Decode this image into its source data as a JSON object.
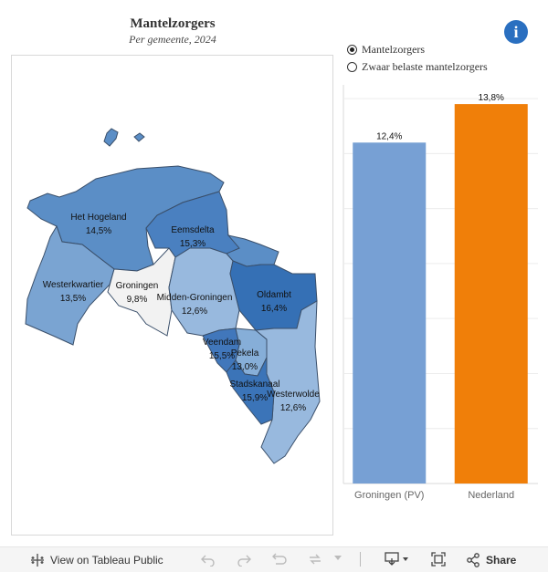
{
  "header": {
    "title": "Mantelzorgers",
    "subtitle": "Per  gemeente,  2024",
    "info_glyph": "i"
  },
  "radio": {
    "options": [
      {
        "label": "Mantelzorgers",
        "selected": true
      },
      {
        "label": "Zwaar belaste mantelzorgers",
        "selected": false
      }
    ]
  },
  "map": {
    "regions": [
      {
        "name": "Het Hogeland",
        "value": "14,5%",
        "color": "#5b8ec6"
      },
      {
        "name": "Eemsdelta",
        "value": "15,3%",
        "color": "#4a80c0"
      },
      {
        "name": "Westerkwartier",
        "value": "13,5%",
        "color": "#7aa4d2"
      },
      {
        "name": "Groningen",
        "value": "9,8%",
        "color": "#f2f2f2"
      },
      {
        "name": "Midden-Groningen",
        "value": "12,6%",
        "color": "#98b9de"
      },
      {
        "name": "Oldambt",
        "value": "16,4%",
        "color": "#3570b5"
      },
      {
        "name": "Veendam",
        "value": "15,5%",
        "color": "#4177bb"
      },
      {
        "name": "Pekela",
        "value": "13,0%",
        "color": "#86aed8"
      },
      {
        "name": "Stadskanaal",
        "value": "15,9%",
        "color": "#3b74b8"
      },
      {
        "name": "Westerwolde",
        "value": "12,6%",
        "color": "#98b9de"
      }
    ]
  },
  "chart_data": {
    "type": "bar",
    "categories": [
      "Groningen (PV)",
      "Nederland"
    ],
    "values": [
      12.4,
      13.8
    ],
    "value_labels": [
      "12,4%",
      "13,8%"
    ],
    "colors": [
      "#77a0d4",
      "#f07f09"
    ],
    "ylim": [
      0,
      14.5
    ],
    "grid": true
  },
  "toolbar": {
    "view_label": "View on Tableau Public",
    "share_label": "Share",
    "undo_icon": "undo-icon",
    "redo_icon": "redo-icon",
    "revert_icon": "revert-icon",
    "refresh_icon": "refresh-icon",
    "download_icon": "download-icon",
    "fullscreen_icon": "fullscreen-icon"
  }
}
